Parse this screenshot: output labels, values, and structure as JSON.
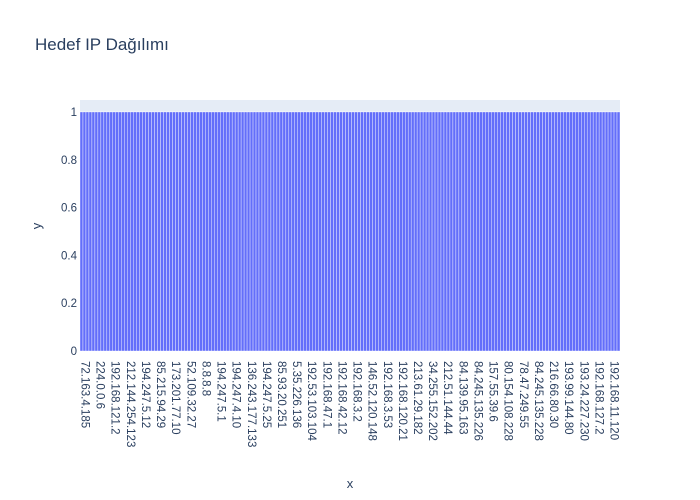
{
  "chart_data": {
    "type": "bar",
    "title": "Hedef IP Dağılımı",
    "xlabel": "x",
    "ylabel": "y",
    "ylim": [
      0,
      1.05
    ],
    "yticks": [
      0,
      0.2,
      0.4,
      0.6,
      0.8,
      1
    ],
    "ytick_labels": [
      "0",
      "0.2",
      "0.4",
      "0.6",
      "0.8",
      "1"
    ],
    "bar_count": 181,
    "bar_value": 1,
    "bar_color": "#636efa",
    "plot_bg": "#e5ecf6",
    "labeled_categories": [
      "72.163.4.185",
      "224.0.0.6",
      "192.168.121.2",
      "212.144.254.123",
      "194.247.5.12",
      "85.215.94.29",
      "173.201.77.10",
      "52.109.32.27",
      "8.8.8.8",
      "194.247.5.1",
      "194.247.4.10",
      "136.243.177.133",
      "194.247.5.25",
      "85.93.20.251",
      "5.35.226.136",
      "192.53.103.104",
      "192.168.47.1",
      "192.168.42.12",
      "192.168.3.2",
      "146.52.120.148",
      "192.168.3.53",
      "192.168.120.21",
      "213.61.29.182",
      "34.255.152.202",
      "212.51.144.44",
      "84.139.95.163",
      "84.245.135.226",
      "157.55.39.6",
      "80.154.108.228",
      "78.47.249.55",
      "84.245.135.228",
      "216.66.80.30",
      "193.99.144.80",
      "193.24.227.230",
      "192.168.127.2",
      "192.168.11.120"
    ]
  }
}
